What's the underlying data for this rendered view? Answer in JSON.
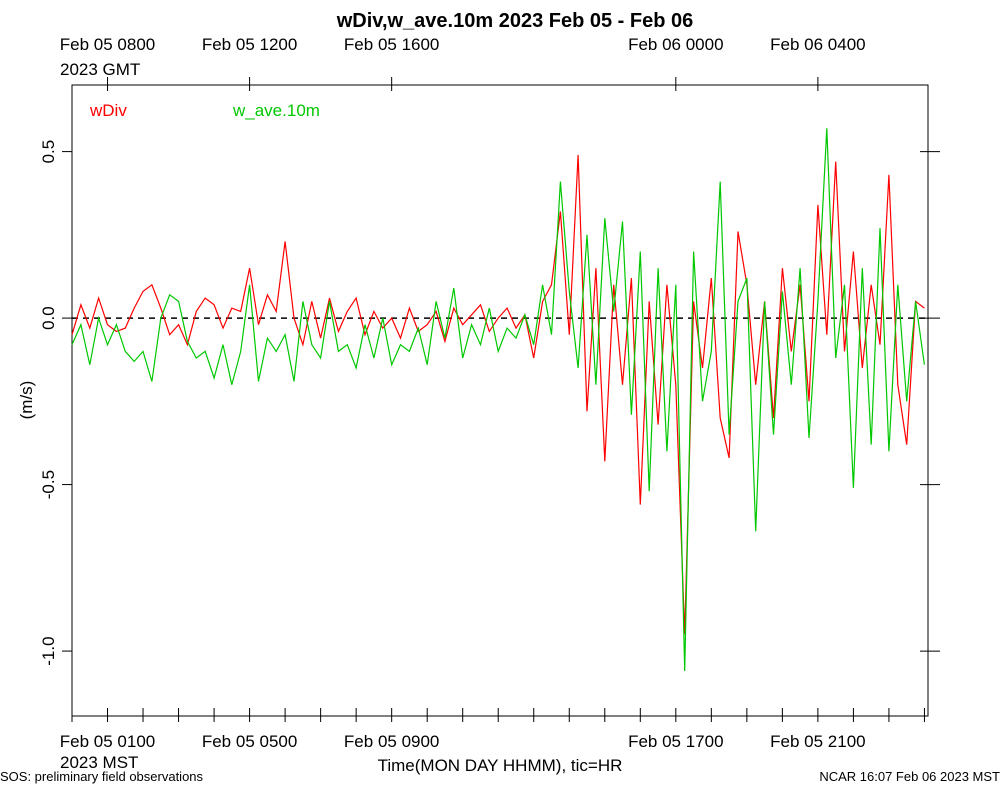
{
  "chart_data": {
    "type": "line",
    "title": "wDiv,w_ave.10m 2023 Feb 05 - Feb 06",
    "xlabel": "Time(MON DAY HHMM), tic=HR",
    "ylabel": "(m/s)",
    "x_year_label": "2023 MST",
    "x2_year_label": "2023 GMT",
    "footer_left": "SOS: preliminary field observations",
    "footer_right": "NCAR 16:07 Feb 06 2023 MST",
    "hline": 0,
    "xlim": [
      0,
      24.1
    ],
    "ylim": [
      -1.195,
      0.7
    ],
    "yticks": [
      {
        "value": 0.5,
        "label": "0.5"
      },
      {
        "value": 0,
        "label": "0.0"
      },
      {
        "value": -0.5,
        "label": "-0.5"
      },
      {
        "value": -1,
        "label": "-1.0"
      }
    ],
    "xticks": [
      {
        "value": 0,
        "label": null
      },
      {
        "value": 1,
        "label": "Feb 05 0100"
      },
      {
        "value": 2,
        "label": null
      },
      {
        "value": 3,
        "label": null
      },
      {
        "value": 4,
        "label": null
      },
      {
        "value": 5,
        "label": "Feb 05 0500"
      },
      {
        "value": 6,
        "label": null
      },
      {
        "value": 7,
        "label": null
      },
      {
        "value": 8,
        "label": null
      },
      {
        "value": 9,
        "label": "Feb 05 0900"
      },
      {
        "value": 10,
        "label": null
      },
      {
        "value": 11,
        "label": null
      },
      {
        "value": 12,
        "label": null
      },
      {
        "value": 13,
        "label": null
      },
      {
        "value": 14,
        "label": null
      },
      {
        "value": 15,
        "label": null
      },
      {
        "value": 16,
        "label": null
      },
      {
        "value": 17,
        "label": "Feb 05 1700"
      },
      {
        "value": 18,
        "label": null
      },
      {
        "value": 19,
        "label": null
      },
      {
        "value": 20,
        "label": null
      },
      {
        "value": 21,
        "label": "Feb 05 2100"
      },
      {
        "value": 22,
        "label": null
      },
      {
        "value": 23,
        "label": null
      },
      {
        "value": 24,
        "label": null
      }
    ],
    "x2ticks": [
      {
        "value": 1,
        "label": "Feb 05 0800"
      },
      {
        "value": 5,
        "label": "Feb 05 1200"
      },
      {
        "value": 9,
        "label": "Feb 05 1600"
      },
      {
        "value": 17,
        "label": "Feb 06 0000"
      },
      {
        "value": 21,
        "label": "Feb 06 0400"
      }
    ],
    "x": [
      0,
      0.25,
      0.5,
      0.75,
      1,
      1.25,
      1.5,
      1.75,
      2,
      2.25,
      2.5,
      2.75,
      3,
      3.25,
      3.5,
      3.75,
      4,
      4.25,
      4.5,
      4.75,
      5,
      5.25,
      5.5,
      5.75,
      6,
      6.25,
      6.5,
      6.75,
      7,
      7.25,
      7.5,
      7.75,
      8,
      8.25,
      8.5,
      8.75,
      9,
      9.25,
      9.5,
      9.75,
      10,
      10.25,
      10.5,
      10.75,
      11,
      11.25,
      11.5,
      11.75,
      12,
      12.25,
      12.5,
      12.75,
      13,
      13.25,
      13.5,
      13.75,
      14,
      14.25,
      14.5,
      14.75,
      15,
      15.25,
      15.5,
      15.75,
      16,
      16.25,
      16.5,
      16.75,
      17,
      17.25,
      17.5,
      17.75,
      18,
      18.25,
      18.5,
      18.75,
      19,
      19.25,
      19.5,
      19.75,
      20,
      20.25,
      20.5,
      20.75,
      21,
      21.25,
      21.5,
      21.75,
      22,
      22.25,
      22.5,
      22.75,
      23,
      23.25,
      23.5,
      23.75,
      24
    ],
    "series": [
      {
        "name": "wDiv",
        "color": "#ff0000",
        "values": [
          -0.05,
          0.04,
          -0.03,
          0.06,
          -0.02,
          -0.04,
          -0.03,
          0.03,
          0.08,
          0.1,
          0.03,
          -0.05,
          -0.02,
          -0.08,
          0.02,
          0.06,
          0.04,
          -0.03,
          0.03,
          0.02,
          0.15,
          -0.02,
          0.07,
          0.02,
          0.23,
          0.0,
          -0.08,
          0.05,
          -0.06,
          0.06,
          -0.04,
          0.02,
          0.06,
          -0.05,
          0.02,
          -0.03,
          0.0,
          -0.06,
          0.03,
          -0.04,
          -0.02,
          0.02,
          -0.07,
          0.03,
          -0.02,
          0.01,
          0.04,
          -0.04,
          0.0,
          0.03,
          -0.03,
          0.01,
          -0.12,
          0.05,
          0.1,
          0.32,
          -0.05,
          0.49,
          -0.28,
          0.15,
          -0.43,
          0.1,
          -0.2,
          0.12,
          -0.56,
          0.05,
          -0.32,
          0.1,
          -0.2,
          -0.95,
          0.05,
          -0.15,
          0.12,
          -0.3,
          -0.42,
          0.26,
          0.1,
          -0.2,
          0.05,
          -0.3,
          0.15,
          -0.1,
          0.1,
          -0.25,
          0.34,
          -0.05,
          0.47,
          -0.1,
          0.2,
          -0.15,
          0.1,
          -0.08,
          0.43,
          -0.2,
          -0.38,
          0.05,
          0.03
        ]
      },
      {
        "name": "w_ave.10m",
        "color": "#00c800",
        "values": [
          -0.08,
          -0.02,
          -0.14,
          0.0,
          -0.08,
          -0.02,
          -0.1,
          -0.13,
          -0.1,
          -0.19,
          0.0,
          0.07,
          0.05,
          -0.07,
          -0.12,
          -0.1,
          -0.18,
          -0.08,
          -0.2,
          -0.1,
          0.1,
          -0.19,
          -0.06,
          -0.1,
          -0.05,
          -0.19,
          0.05,
          -0.08,
          -0.12,
          0.05,
          -0.1,
          -0.08,
          -0.15,
          -0.02,
          -0.12,
          0.0,
          -0.14,
          -0.08,
          -0.1,
          -0.03,
          -0.14,
          0.05,
          -0.06,
          0.09,
          -0.12,
          -0.02,
          -0.08,
          0.03,
          -0.1,
          -0.03,
          -0.06,
          0.01,
          -0.08,
          0.1,
          -0.05,
          0.41,
          0.08,
          -0.15,
          0.25,
          -0.2,
          0.3,
          0.02,
          0.29,
          -0.29,
          0.2,
          -0.52,
          0.15,
          -0.4,
          0.1,
          -1.06,
          0.2,
          -0.25,
          -0.1,
          0.41,
          -0.35,
          0.05,
          0.12,
          -0.64,
          0.05,
          -0.35,
          0.08,
          -0.2,
          0.15,
          -0.36,
          0.05,
          0.57,
          -0.12,
          0.1,
          -0.51,
          0.15,
          -0.38,
          0.27,
          -0.4,
          0.1,
          -0.25,
          0.05,
          -0.14
        ]
      }
    ]
  }
}
